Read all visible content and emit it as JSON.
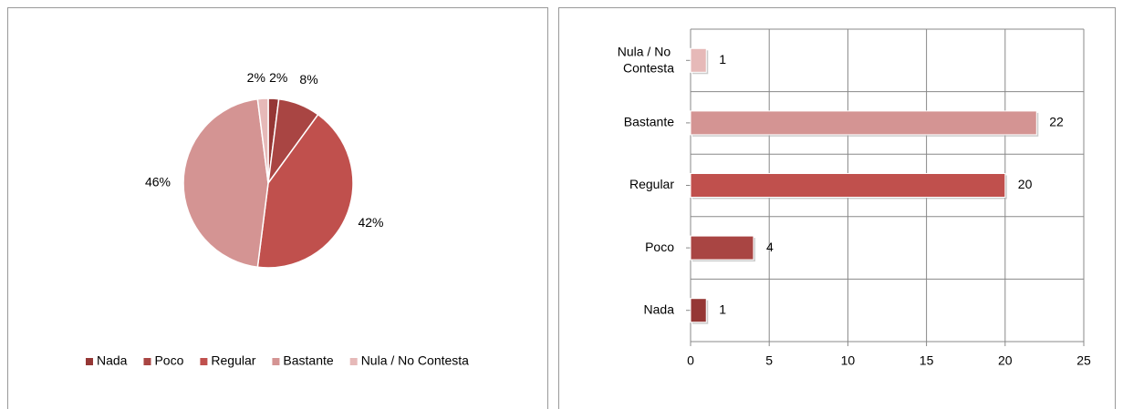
{
  "chart_data": [
    {
      "type": "pie",
      "categories": [
        "Nada",
        "Poco",
        "Regular",
        "Bastante",
        "Nula / No Contesta"
      ],
      "values": [
        2,
        8,
        42,
        46,
        2
      ],
      "value_labels": [
        "2%",
        "8%",
        "42%",
        "46%",
        "2%"
      ],
      "colors": [
        "#953735",
        "#a94543",
        "#c0504d",
        "#d49493",
        "#e6b9b8"
      ],
      "legend": "bottom"
    },
    {
      "type": "hbar",
      "categories": [
        "Nada",
        "Poco",
        "Regular",
        "Bastante",
        "Nula / No Contesta"
      ],
      "values": [
        1,
        4,
        20,
        22,
        1
      ],
      "colors": [
        "#953735",
        "#a94543",
        "#c0504d",
        "#d49493",
        "#e6b9b8"
      ],
      "xlim": [
        0,
        25
      ],
      "xticks": [
        0,
        5,
        10,
        15,
        20,
        25
      ],
      "grid": true
    }
  ]
}
